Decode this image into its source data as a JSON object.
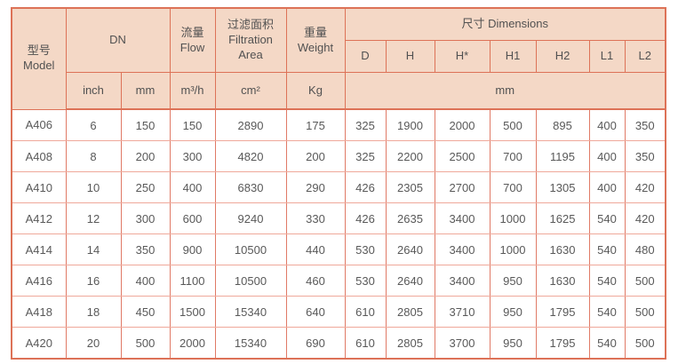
{
  "table": {
    "header": {
      "model": {
        "zh": "型号",
        "en": "Model"
      },
      "dn": "DN",
      "flow": {
        "zh": "流量",
        "en": "Flow"
      },
      "filtration": {
        "zh": "过滤面积",
        "en_line1": "Filtration",
        "en_line2": "Area"
      },
      "weight": {
        "zh": "重量",
        "en": "Weight"
      },
      "dimensions": "尺寸 Dimensions",
      "dim_cols": [
        "D",
        "H",
        "H*",
        "H1",
        "H2",
        "L1",
        "L2"
      ],
      "units": {
        "inch": "inch",
        "mm": "mm",
        "flow": "m³/h",
        "area": "cm²",
        "weight": "Kg",
        "dims": "mm"
      }
    },
    "rows": [
      {
        "cells": [
          "A406",
          "6",
          "150",
          "150",
          "2890",
          "175",
          "325",
          "1900",
          "2000",
          "500",
          "895",
          "400",
          "350"
        ]
      },
      {
        "cells": [
          "A408",
          "8",
          "200",
          "300",
          "4820",
          "200",
          "325",
          "2200",
          "2500",
          "700",
          "1195",
          "400",
          "350"
        ]
      },
      {
        "cells": [
          "A410",
          "10",
          "250",
          "400",
          "6830",
          "290",
          "426",
          "2305",
          "2700",
          "700",
          "1305",
          "400",
          "420"
        ]
      },
      {
        "cells": [
          "A412",
          "12",
          "300",
          "600",
          "9240",
          "330",
          "426",
          "2635",
          "3400",
          "1000",
          "1625",
          "540",
          "420"
        ]
      },
      {
        "cells": [
          "A414",
          "14",
          "350",
          "900",
          "10500",
          "440",
          "530",
          "2640",
          "3400",
          "1000",
          "1630",
          "540",
          "480"
        ]
      },
      {
        "cells": [
          "A416",
          "16",
          "400",
          "1100",
          "10500",
          "460",
          "530",
          "2640",
          "3400",
          "950",
          "1630",
          "540",
          "500"
        ]
      },
      {
        "cells": [
          "A418",
          "18",
          "450",
          "1500",
          "15340",
          "640",
          "610",
          "2805",
          "3710",
          "950",
          "1795",
          "540",
          "500"
        ]
      },
      {
        "cells": [
          "A420",
          "20",
          "500",
          "2000",
          "15340",
          "690",
          "610",
          "2805",
          "3700",
          "950",
          "1795",
          "540",
          "500"
        ]
      }
    ],
    "colors": {
      "header_bg": "#f4d8c6",
      "header_border": "#dd7257",
      "grid_vertical": "#e07a66",
      "grid_horizontal": "#efa89a",
      "header_text": "#515151",
      "data_text": "#595959",
      "data_bg": "#ffffff"
    }
  }
}
